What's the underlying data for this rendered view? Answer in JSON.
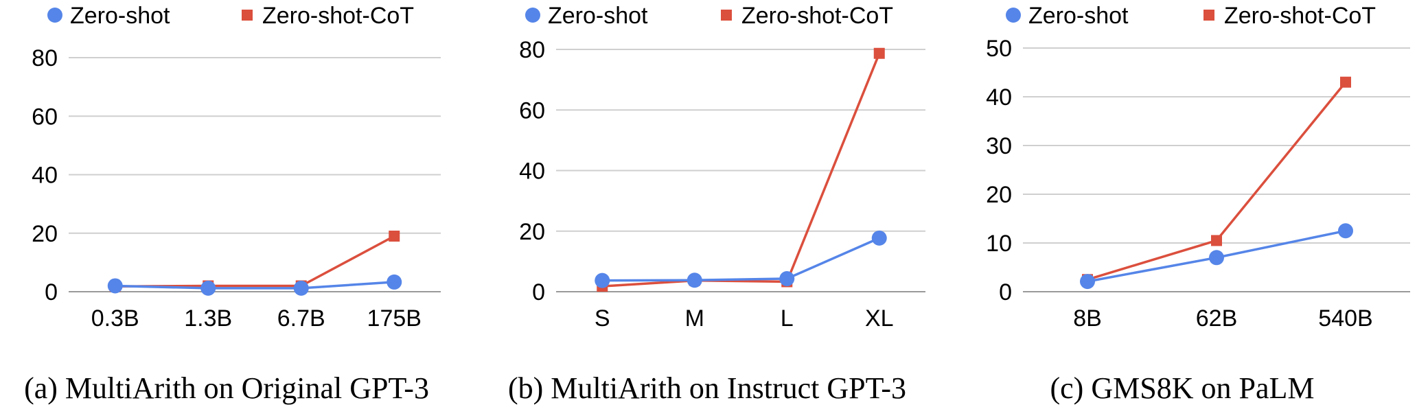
{
  "colors": {
    "zero_shot": "#5585E8",
    "zero_shot_cot": "#DB4F3D",
    "grid": "#CFCFCF",
    "axis": "#999999"
  },
  "chart_data": [
    {
      "type": "line",
      "title": "(a) MultiArith on Original GPT-3",
      "categories": [
        "0.3B",
        "1.3B",
        "6.7B",
        "175B"
      ],
      "ylim": [
        0,
        80
      ],
      "yticks": [
        0,
        20,
        40,
        60,
        80
      ],
      "grid": true,
      "legend": "top-left",
      "series": [
        {
          "name": "Zero-shot",
          "marker": "circle",
          "values": [
            2.0,
            1.2,
            1.2,
            3.3
          ]
        },
        {
          "name": "Zero-shot-CoT",
          "marker": "square",
          "values": [
            1.8,
            2.0,
            2.0,
            19.0
          ]
        }
      ]
    },
    {
      "type": "line",
      "title": "(b) MultiArith on Instruct GPT-3",
      "categories": [
        "S",
        "M",
        "L",
        "XL"
      ],
      "ylim": [
        0,
        80
      ],
      "yticks": [
        0,
        20,
        40,
        60,
        80
      ],
      "grid": true,
      "legend": "top-left",
      "series": [
        {
          "name": "Zero-shot",
          "marker": "circle",
          "values": [
            3.7,
            3.8,
            4.3,
            17.7
          ]
        },
        {
          "name": "Zero-shot-CoT",
          "marker": "square",
          "values": [
            1.8,
            3.7,
            3.3,
            78.7
          ]
        }
      ]
    },
    {
      "type": "line",
      "title": "(c) GMS8K on PaLM",
      "categories": [
        "8B",
        "62B",
        "540B"
      ],
      "ylim": [
        0,
        50
      ],
      "yticks": [
        0,
        10,
        20,
        30,
        40,
        50
      ],
      "grid": true,
      "legend": "top-left",
      "series": [
        {
          "name": "Zero-shot",
          "marker": "circle",
          "values": [
            2.1,
            7.0,
            12.5
          ]
        },
        {
          "name": "Zero-shot-CoT",
          "marker": "square",
          "values": [
            2.5,
            10.5,
            43.0
          ]
        }
      ]
    }
  ]
}
